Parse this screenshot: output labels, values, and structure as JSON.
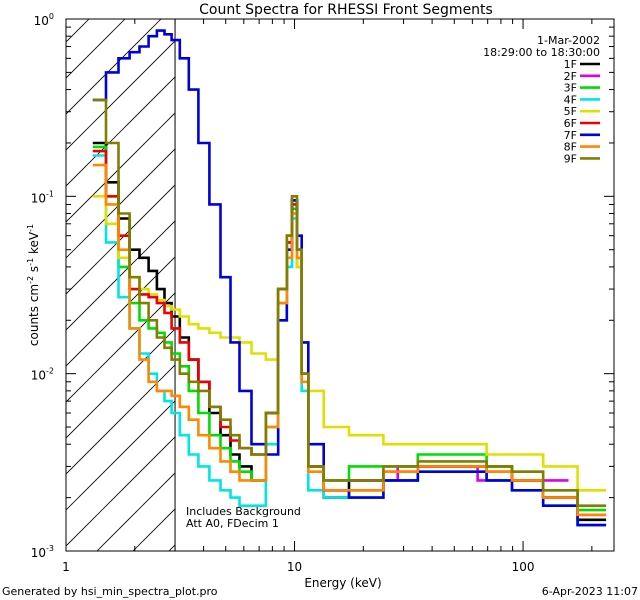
{
  "chart_data": {
    "type": "line",
    "title": "Count Spectra for RHESSI Front Segments",
    "xlabel": "Energy (keV)",
    "ylabel": {
      "base": "counts cm",
      "exp1": "-2",
      "mid1": " s",
      "exp2": "-1",
      "mid2": " keV",
      "exp3": "-1"
    },
    "x_scale": "log",
    "y_scale": "log",
    "xlim": [
      1,
      250
    ],
    "ylim": [
      0.001,
      1
    ],
    "x_ticks": [
      {
        "value": 1,
        "label": "1"
      },
      {
        "value": 10,
        "label": "10"
      },
      {
        "value": 100,
        "label": "100"
      }
    ],
    "y_ticks": [
      {
        "value": 0.001,
        "base": "10",
        "exp": "-3"
      },
      {
        "value": 0.01,
        "base": "10",
        "exp": "-2"
      },
      {
        "value": 0.1,
        "base": "10",
        "exp": "-1"
      },
      {
        "value": 1,
        "base": "10",
        "exp": "0"
      }
    ],
    "date_label": "1-Mar-2002",
    "time_range": "18:29:00 to 18:30:00",
    "annotations": [
      "Includes Background",
      "Att A0, FDecim 1"
    ],
    "attenuator_boundary_keV": 3,
    "legend_position": "top-right",
    "series": [
      {
        "name": "1F",
        "color": "#000000",
        "x": [
          1.4,
          1.6,
          1.8,
          2.0,
          2.2,
          2.4,
          2.6,
          2.8,
          3.0,
          3.3,
          3.6,
          4.0,
          4.5,
          5.0,
          5.5,
          6.0,
          7.0,
          8.0,
          9.0,
          9.5,
          10.0,
          10.5,
          11.0,
          12.0,
          15.0,
          20.0,
          30.0,
          40.0,
          60.0,
          80.0,
          100.0,
          150.0,
          200.0
        ],
        "y": [
          0.2,
          0.12,
          0.075,
          0.05,
          0.045,
          0.038,
          0.03,
          0.025,
          0.021,
          0.016,
          0.012,
          0.009,
          0.006,
          0.0045,
          0.0035,
          0.003,
          0.0025,
          0.006,
          0.03,
          0.06,
          0.095,
          0.05,
          0.01,
          0.003,
          0.002,
          0.0025,
          0.0025,
          0.003,
          0.003,
          0.003,
          0.0025,
          0.002,
          0.0015
        ]
      },
      {
        "name": "2F",
        "color": "#e000e0",
        "x": [
          20.0,
          40.0,
          100.0
        ],
        "y": [
          0.0025,
          0.003,
          0.0025
        ]
      },
      {
        "name": "3F",
        "color": "#00dd00",
        "x": [
          1.4,
          1.6,
          1.8,
          2.0,
          2.2,
          2.4,
          2.6,
          2.8,
          3.0,
          3.3,
          3.6,
          4.0,
          4.5,
          5.0,
          5.5,
          6.0,
          7.0,
          8.0,
          9.0,
          9.5,
          10.0,
          10.5,
          11.0,
          12.0,
          15.0,
          20.0,
          30.0,
          40.0,
          60.0,
          80.0,
          100.0,
          150.0,
          200.0
        ],
        "y": [
          0.19,
          0.1,
          0.04,
          0.025,
          0.02,
          0.018,
          0.017,
          0.015,
          0.013,
          0.011,
          0.008,
          0.006,
          0.0045,
          0.0038,
          0.0032,
          0.0028,
          0.0025,
          0.005,
          0.025,
          0.05,
          0.085,
          0.045,
          0.009,
          0.003,
          0.0025,
          0.003,
          0.003,
          0.0035,
          0.0035,
          0.003,
          0.0028,
          0.0022,
          0.0017
        ]
      },
      {
        "name": "4F",
        "color": "#00e5e5",
        "x": [
          1.4,
          1.6,
          1.8,
          2.0,
          2.2,
          2.4,
          2.6,
          2.8,
          3.0,
          3.3,
          3.6,
          4.0,
          4.5,
          5.0,
          5.5,
          6.0,
          7.0,
          8.0,
          9.0,
          9.5,
          10.0,
          10.5,
          11.0,
          12.0,
          15.0,
          20.0,
          30.0,
          40.0,
          60.0,
          80.0,
          100.0,
          150.0,
          200.0
        ],
        "y": [
          0.17,
          0.055,
          0.027,
          0.018,
          0.013,
          0.01,
          0.008,
          0.007,
          0.006,
          0.0045,
          0.0035,
          0.003,
          0.0025,
          0.0022,
          0.002,
          0.0018,
          0.0018,
          0.004,
          0.02,
          0.04,
          0.075,
          0.04,
          0.008,
          0.0022,
          0.002,
          0.002,
          0.0025,
          0.0028,
          0.0028,
          0.0025,
          0.0022,
          0.0018,
          0.0014
        ]
      },
      {
        "name": "5F",
        "color": "#e0e000",
        "x": [
          1.4,
          1.6,
          1.8,
          2.0,
          2.2,
          2.4,
          2.6,
          2.8,
          3.0,
          3.3,
          3.6,
          4.0,
          4.5,
          5.0,
          5.5,
          6.0,
          7.0,
          8.0,
          9.0,
          9.5,
          10.0,
          10.5,
          11.0,
          12.0,
          15.0,
          20.0,
          30.0,
          40.0,
          60.0,
          80.0,
          100.0,
          150.0,
          200.0
        ],
        "y": [
          0.1,
          0.07,
          0.045,
          0.035,
          0.03,
          0.028,
          0.026,
          0.024,
          0.023,
          0.021,
          0.019,
          0.018,
          0.017,
          0.016,
          0.016,
          0.015,
          0.013,
          0.012,
          0.03,
          0.06,
          0.08,
          0.04,
          0.015,
          0.008,
          0.005,
          0.0045,
          0.004,
          0.004,
          0.004,
          0.0035,
          0.0035,
          0.003,
          0.0022
        ]
      },
      {
        "name": "6F",
        "color": "#ee0000",
        "x": [
          1.4,
          1.6,
          1.8,
          2.0,
          2.2,
          2.4,
          2.6,
          2.8,
          3.0,
          3.3,
          3.6,
          4.0,
          4.5,
          5.0,
          5.5,
          6.0,
          7.0,
          8.0,
          9.0,
          9.5,
          10.0,
          10.5,
          11.0,
          12.0,
          15.0,
          20.0,
          30.0,
          40.0,
          60.0,
          80.0,
          100.0,
          150.0,
          200.0
        ],
        "y": [
          0.18,
          0.1,
          0.06,
          0.03,
          0.028,
          0.027,
          0.025,
          0.022,
          0.018,
          0.015,
          0.012,
          0.009,
          0.0065,
          0.005,
          0.0042,
          0.0038,
          0.0035,
          0.006,
          0.03,
          0.055,
          0.09,
          0.05,
          0.01,
          0.003,
          0.0022,
          0.0022,
          0.0028,
          0.003,
          0.003,
          0.0028,
          0.0025,
          0.002,
          0.0016
        ]
      },
      {
        "name": "7F",
        "color": "#0000dd",
        "x": [
          1.4,
          1.6,
          1.8,
          2.0,
          2.2,
          2.4,
          2.6,
          2.8,
          3.0,
          3.3,
          3.6,
          4.0,
          4.5,
          5.0,
          5.5,
          6.0,
          7.0,
          8.0,
          9.0,
          9.5,
          10.0,
          10.5,
          11.0,
          12.0,
          15.0,
          20.0,
          30.0,
          40.0,
          60.0,
          80.0,
          100.0,
          150.0,
          200.0
        ],
        "y": [
          0.35,
          0.5,
          0.6,
          0.65,
          0.7,
          0.8,
          0.86,
          0.82,
          0.76,
          0.6,
          0.4,
          0.2,
          0.09,
          0.035,
          0.015,
          0.008,
          0.004,
          0.0035,
          0.02,
          0.05,
          0.095,
          0.06,
          0.015,
          0.004,
          0.0022,
          0.002,
          0.0025,
          0.0028,
          0.0028,
          0.0025,
          0.0022,
          0.0018,
          0.0014
        ]
      },
      {
        "name": "8F",
        "color": "#ff8800",
        "x": [
          1.4,
          1.6,
          1.8,
          2.0,
          2.2,
          2.4,
          2.6,
          2.8,
          3.0,
          3.3,
          3.6,
          4.0,
          4.5,
          5.0,
          5.5,
          6.0,
          7.0,
          8.0,
          9.0,
          9.5,
          10.0,
          10.5,
          11.0,
          12.0,
          15.0,
          20.0,
          30.0,
          40.0,
          60.0,
          80.0,
          100.0,
          150.0,
          200.0
        ],
        "y": [
          0.15,
          0.09,
          0.05,
          0.018,
          0.012,
          0.009,
          0.008,
          0.008,
          0.0075,
          0.0065,
          0.0055,
          0.0045,
          0.0038,
          0.0032,
          0.0028,
          0.0025,
          0.0025,
          0.005,
          0.025,
          0.045,
          0.08,
          0.045,
          0.009,
          0.0028,
          0.0022,
          0.0022,
          0.0028,
          0.003,
          0.003,
          0.0028,
          0.0025,
          0.002,
          0.0016
        ]
      },
      {
        "name": "9F",
        "color": "#808000",
        "x": [
          1.4,
          1.6,
          1.8,
          2.0,
          2.2,
          2.4,
          2.6,
          2.8,
          3.0,
          3.3,
          3.6,
          4.0,
          4.5,
          5.0,
          5.5,
          6.0,
          7.0,
          8.0,
          9.0,
          9.5,
          10.0,
          10.5,
          11.0,
          12.0,
          15.0,
          20.0,
          30.0,
          40.0,
          60.0,
          80.0,
          100.0,
          150.0,
          200.0
        ],
        "y": [
          0.35,
          0.2,
          0.08,
          0.035,
          0.025,
          0.02,
          0.016,
          0.014,
          0.012,
          0.01,
          0.009,
          0.008,
          0.0065,
          0.0055,
          0.0045,
          0.0038,
          0.0035,
          0.006,
          0.03,
          0.06,
          0.1,
          0.05,
          0.01,
          0.003,
          0.0025,
          0.0025,
          0.003,
          0.0032,
          0.0032,
          0.003,
          0.0028,
          0.0022,
          0.0018
        ]
      }
    ]
  },
  "footer": {
    "generated_by": "Generated by hsi_min_spectra_plot.pro",
    "timestamp": "6-Apr-2023 11:07"
  }
}
